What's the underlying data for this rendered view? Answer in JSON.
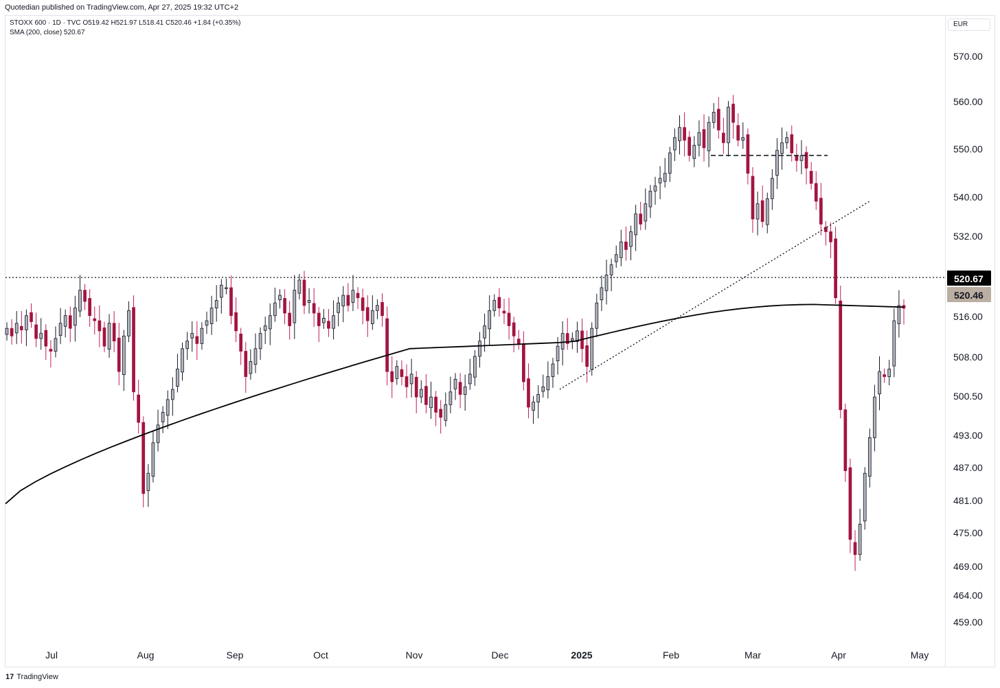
{
  "header": {
    "published": "Quotedian published on TradingView.com, Apr 27, 2025 19:32 UTC+2",
    "legend_line1": "STOXX 600 · 1D · TVC  O519.42  H521.97  L518.41  C520.46  +1.84 (+0.35%)",
    "legend_line2": "SMA (200, close)  520.67",
    "currency": "EUR"
  },
  "footer": {
    "logo": "17",
    "brand": "TradingView"
  },
  "colors": {
    "up": "#b2b5be",
    "down": "#a3153f",
    "wick_down": "#c2185b",
    "sma": "#000000",
    "last_tag": "#bbaea2",
    "sma_tag": "#000000"
  },
  "chart_data": {
    "type": "candlestick",
    "title": "STOXX 600",
    "interval": "1D",
    "source": "TVC",
    "currency": "EUR",
    "y_ticks": [
      "570.00",
      "560.00",
      "550.00",
      "540.00",
      "532.00",
      "516.00",
      "508.00",
      "500.50",
      "493.00",
      "487.00",
      "481.00",
      "475.00",
      "469.00",
      "464.00",
      "459.00"
    ],
    "x_ticks": [
      "Jul",
      "Aug",
      "Sep",
      "Oct",
      "Nov",
      "Dec",
      "2025",
      "Feb",
      "Mar",
      "Apr",
      "May"
    ],
    "y_scale": "log",
    "last_close_label": "520.46",
    "sma_label": "520.67",
    "ohlc": {
      "open": 519.42,
      "high": 521.97,
      "low": 518.41,
      "close": 520.46,
      "change": "+1.84",
      "change_pct": "+0.35%"
    },
    "sma200_value": 520.67,
    "horizontal_resistance": 526.5,
    "neckline": 550.5,
    "closes": [
      516.5,
      515.0,
      517.5,
      516.2,
      519.0,
      517.8,
      514.5,
      515.5,
      513.0,
      512.0,
      514.5,
      517.5,
      519.0,
      516.5,
      520.5,
      524.0,
      521.8,
      519.0,
      518.0,
      516.0,
      513.0,
      517.5,
      514.0,
      508.0,
      515.0,
      520.0,
      504.0,
      498.0,
      484.0,
      488.0,
      494.0,
      497.5,
      500.0,
      502.5,
      504.5,
      508.5,
      512.5,
      514.0,
      515.5,
      513.5,
      516.5,
      518.0,
      520.5,
      522.0,
      525.0,
      524.5,
      519.0,
      516.0,
      512.0,
      507.0,
      510.0,
      512.5,
      515.5,
      517.0,
      519.0,
      521.5,
      523.0,
      519.5,
      517.0,
      524.0,
      526.0,
      521.0,
      522.0,
      519.5,
      517.0,
      518.5,
      516.5,
      519.0,
      521.5,
      523.0,
      521.0,
      524.0,
      522.5,
      520.0,
      518.0,
      520.0,
      521.0,
      519.0,
      508.0,
      506.0,
      509.0,
      507.0,
      505.0,
      507.5,
      503.0,
      504.5,
      501.5,
      503.0,
      500.0,
      499.0,
      501.5,
      504.0,
      506.5,
      503.5,
      505.0,
      507.5,
      511.0,
      514.0,
      517.0,
      520.0,
      522.0,
      520.5,
      519.5,
      517.0,
      515.0,
      513.5,
      506.0,
      501.0,
      502.0,
      503.5,
      505.0,
      507.0,
      509.5,
      513.0,
      515.5,
      513.5,
      514.5,
      516.0,
      512.5,
      509.0,
      516.5,
      521.5,
      524.5,
      527.0,
      529.0,
      531.0,
      533.5,
      532.0,
      535.5,
      539.0,
      537.0,
      541.0,
      543.5,
      544.5,
      546.0,
      547.0,
      551.0,
      554.0,
      556.0,
      553.5,
      550.5,
      552.5,
      555.0,
      552.0,
      557.0,
      559.0,
      555.5,
      553.0,
      560.0,
      557.0,
      553.5,
      554.0,
      547.0,
      538.0,
      541.0,
      537.5,
      542.0,
      546.0,
      551.5,
      553.0,
      554.0,
      551.0,
      549.5,
      550.5,
      548.0,
      545.0,
      541.5,
      537.0,
      535.5,
      533.5,
      522.5,
      500.5,
      488.5,
      475.0,
      472.0,
      478.0,
      488.0,
      495.0,
      503.0,
      508.0,
      507.0,
      508.5,
      518.0,
      521.0,
      520.46
    ]
  }
}
